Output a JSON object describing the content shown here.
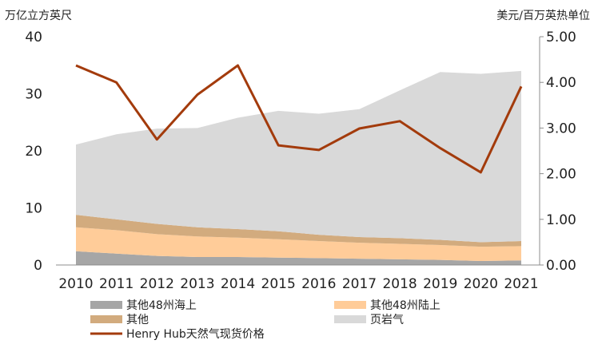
{
  "chart_data": {
    "type": "area",
    "left_axis_label": "万亿立方英尺",
    "right_axis_label": "美元/百万英热单位",
    "categories": [
      "2010",
      "2011",
      "2012",
      "2013",
      "2014",
      "2015",
      "2016",
      "2017",
      "2018",
      "2019",
      "2020",
      "2021"
    ],
    "ylim_left": [
      0,
      40
    ],
    "yticks_left": [
      "0",
      "10",
      "20",
      "30",
      "40"
    ],
    "ylim_right": [
      0,
      5
    ],
    "yticks_right": [
      "0.00",
      "1.00",
      "2.00",
      "3.00",
      "4.00",
      "5.00"
    ],
    "stacked_series": [
      {
        "name": "其他48州海上",
        "color": "#a6a6a6",
        "values": [
          2.4,
          2.0,
          1.6,
          1.4,
          1.4,
          1.3,
          1.2,
          1.1,
          1.0,
          0.9,
          0.7,
          0.8
        ]
      },
      {
        "name": "其他48州陆上",
        "color": "#ffcc99",
        "values": [
          4.2,
          4.1,
          3.8,
          3.6,
          3.4,
          3.2,
          3.0,
          2.8,
          2.7,
          2.6,
          2.5,
          2.5
        ]
      },
      {
        "name": "其他",
        "color": "#d2ab7e",
        "values": [
          2.2,
          1.9,
          1.8,
          1.6,
          1.5,
          1.4,
          1.1,
          1.0,
          1.0,
          0.9,
          0.8,
          0.9
        ]
      },
      {
        "name": "页岩气",
        "color": "#d9d9d9",
        "values": [
          12.3,
          14.9,
          16.7,
          17.4,
          19.5,
          21.1,
          21.2,
          22.4,
          25.9,
          29.4,
          29.5,
          29.8
        ]
      }
    ],
    "line_series": {
      "name": "Henry Hub天然气现货价格",
      "color": "#a33b0c",
      "axis": "right",
      "values": [
        4.37,
        4.0,
        2.75,
        3.73,
        4.37,
        2.62,
        2.52,
        2.99,
        3.15,
        2.56,
        2.03,
        3.91
      ]
    },
    "legend": [
      {
        "label": "其他48州海上",
        "color": "#a6a6a6",
        "kind": "area"
      },
      {
        "label": "其他48州陆上",
        "color": "#ffcc99",
        "kind": "area"
      },
      {
        "label": "其他",
        "color": "#d2ab7e",
        "kind": "area"
      },
      {
        "label": "页岩气",
        "color": "#d9d9d9",
        "kind": "area"
      },
      {
        "label": "Henry Hub天然气现货价格",
        "color": "#a33b0c",
        "kind": "line"
      }
    ],
    "legend_placement": "bottom"
  }
}
